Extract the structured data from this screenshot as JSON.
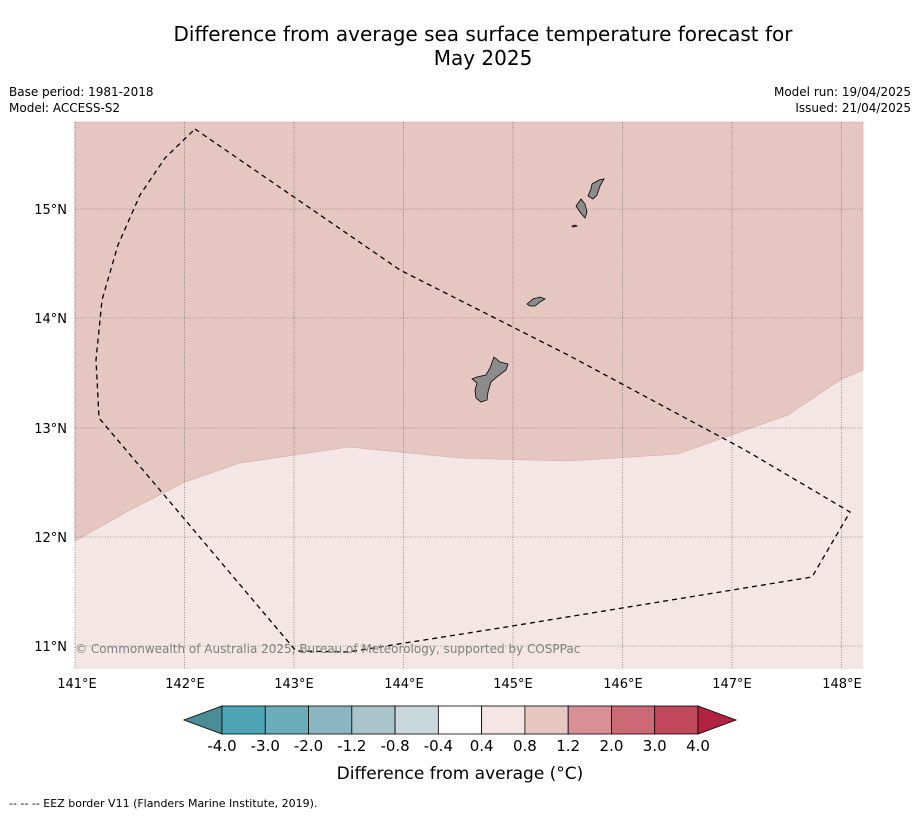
{
  "header": {
    "title_line1": "Difference from average sea surface temperature forecast for",
    "title_line2": "May 2025",
    "base_period": "Base period: 1981-2018",
    "model": "Model: ACCESS-S2",
    "model_run": "Model run: 19/04/2025",
    "issued": "Issued: 21/04/2025"
  },
  "map": {
    "latitude_labels": [
      "11°N",
      "12°N",
      "13°N",
      "14°N",
      "15°N"
    ],
    "longitude_labels": [
      "141°E",
      "142°E",
      "143°E",
      "144°E",
      "145°E",
      "146°E",
      "147°E",
      "148°E"
    ],
    "region_colors": {
      "anomaly_0_4_to_0_8": "#f4e6e4",
      "anomaly_0_8_to_1_2": "#e6c6c1",
      "land": "#8c8c8c"
    },
    "copyright": "© Commonwealth of Australia 2025, Bureau of Meteorology, supported by COSPPac"
  },
  "colorbar": {
    "ticks": [
      "-4.0",
      "-3.0",
      "-2.0",
      "-1.2",
      "-0.8",
      "-0.4",
      "0.4",
      "0.8",
      "1.2",
      "2.0",
      "3.0",
      "4.0"
    ],
    "colors": [
      "#4a8d98",
      "#4ea6b5",
      "#6aadbb",
      "#8ab6c1",
      "#a9c5ca",
      "#c9d8da",
      "#ffffff",
      "#f4e6e4",
      "#e6c6c1",
      "#d88f96",
      "#cb6a74",
      "#c1485b",
      "#b2233f"
    ],
    "title": "Difference from average (°C)"
  },
  "footer": {
    "legend": "--  --  -- EEZ border V11 (Flanders Marine Institute, 2019)."
  }
}
